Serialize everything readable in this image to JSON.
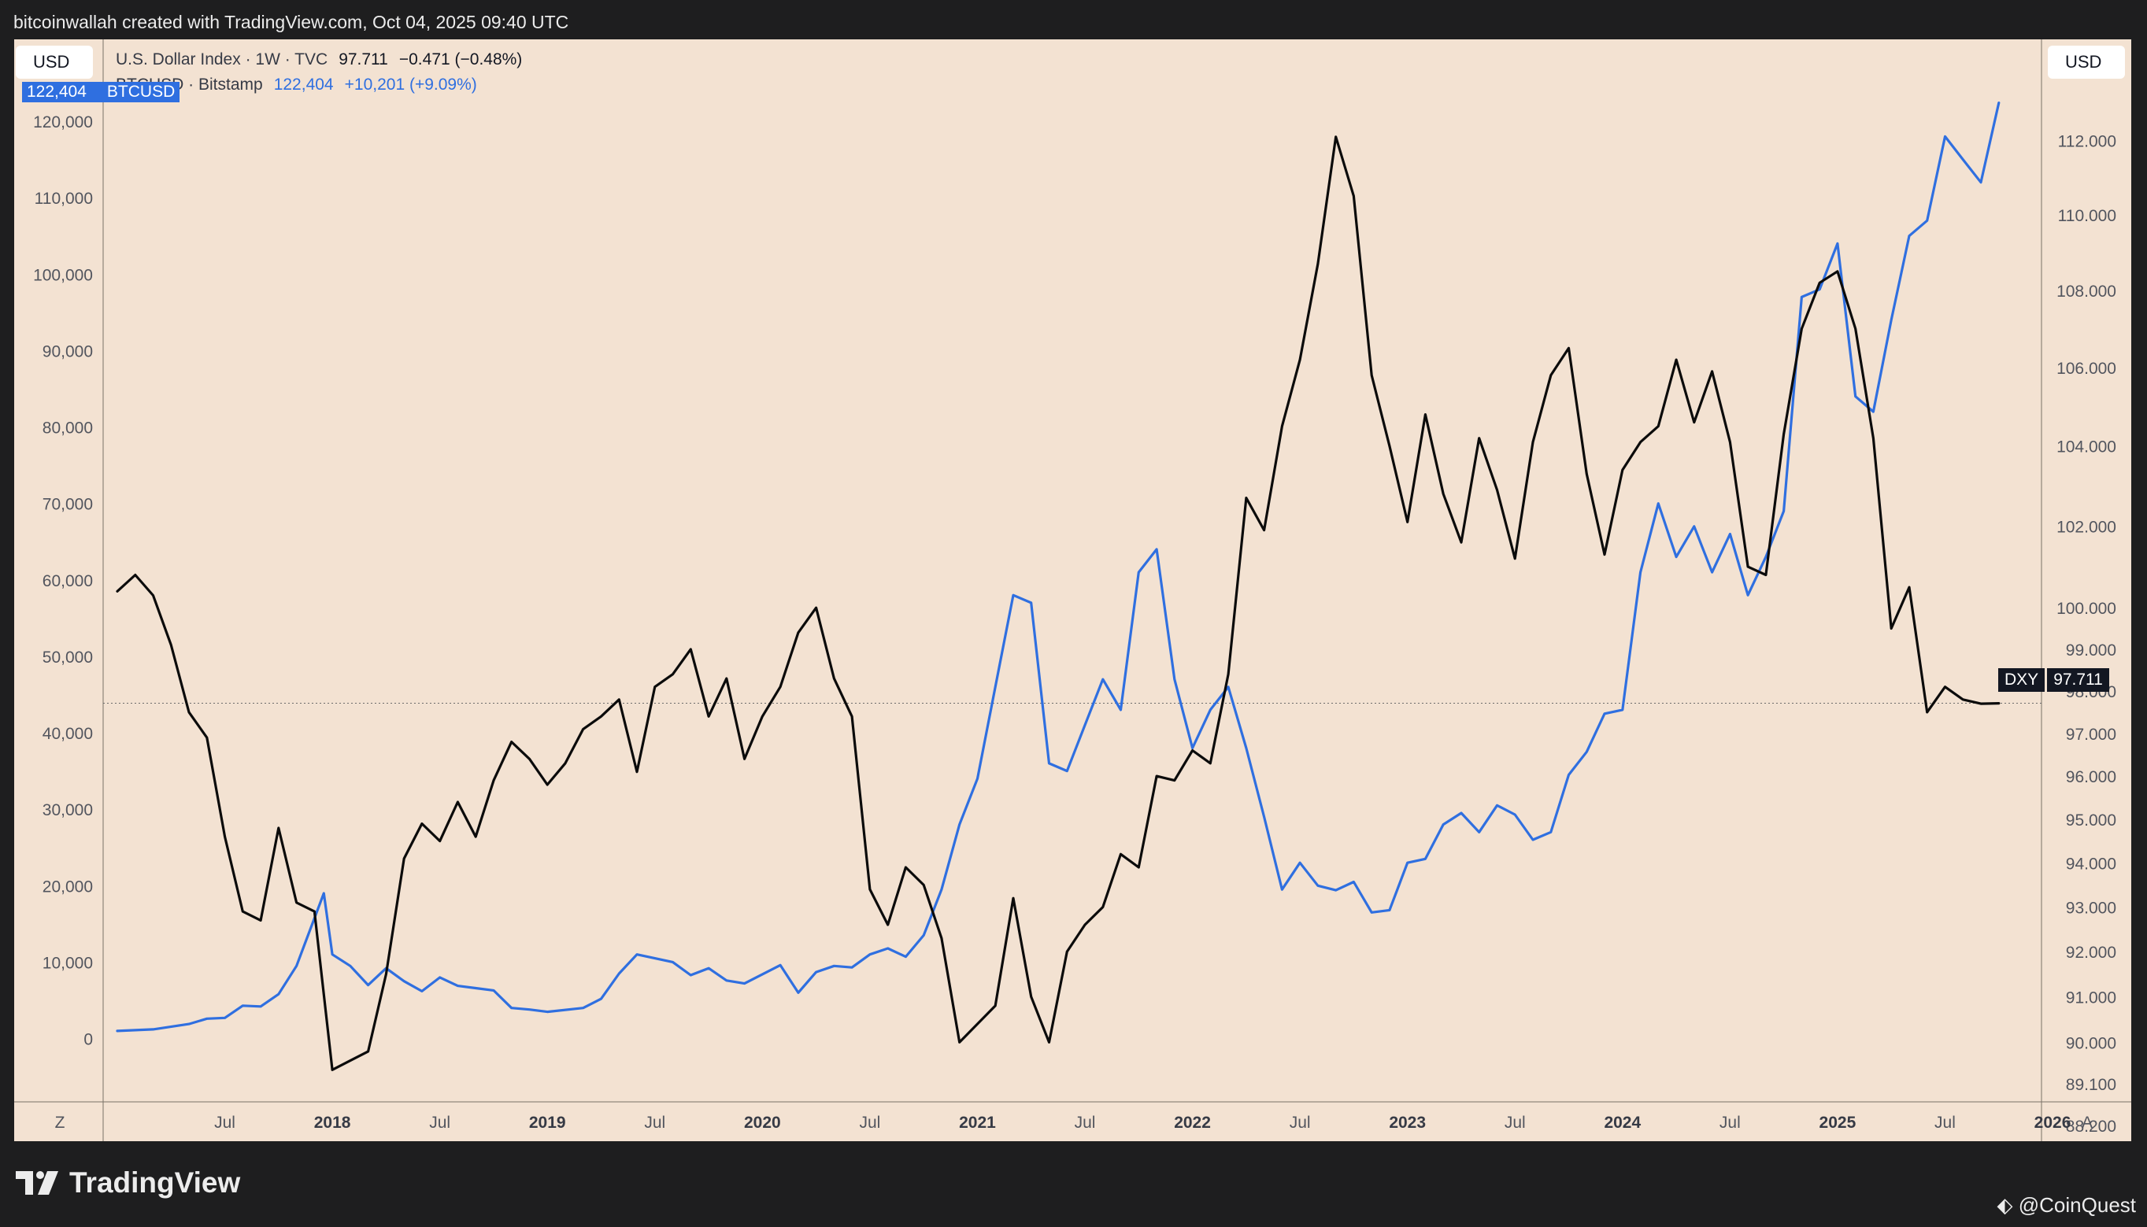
{
  "header": {
    "caption": "bitcoinwallah created with TradingView.com, Oct 04, 2025 09:40 UTC"
  },
  "toolbar": {
    "left_currency": "USD",
    "right_currency": "USD",
    "left_corner": "Z",
    "right_corner": "A"
  },
  "legend": {
    "dxy": {
      "title": "U.S. Dollar Index · 1W · TVC",
      "value": "97.711",
      "change": "−0.471 (−0.48%)"
    },
    "btc": {
      "title": "BTCUSD · Bitstamp",
      "value": "122,404",
      "change": "+10,201 (+9.09%)"
    }
  },
  "price_tags": {
    "btc": {
      "value": "122,404",
      "name": "BTCUSD"
    },
    "dxy": {
      "name": "DXY",
      "value": "97.711"
    }
  },
  "footer": {
    "brand": "TradingView",
    "watermark": "@CoinQuest"
  },
  "colors": {
    "background": "#f3e2d2",
    "btc_line": "#2f6fe0",
    "dxy_line": "#0b0b0b",
    "frame": "#1e1e1f"
  },
  "chart_data": {
    "type": "line",
    "x_tick_labels": [
      "Jul",
      "2018",
      "Jul",
      "2019",
      "Jul",
      "2020",
      "Jul",
      "2021",
      "Jul",
      "2022",
      "Jul",
      "2023",
      "Jul",
      "2024",
      "Jul",
      "2025",
      "Jul",
      "2026"
    ],
    "left_axis": {
      "series": "BTCUSD",
      "ylim": [
        -2000,
        127000
      ],
      "ticks": [
        "0",
        "10,000",
        "20,000",
        "30,000",
        "40,000",
        "50,000",
        "60,000",
        "70,000",
        "80,000",
        "90,000",
        "100,000",
        "110,000",
        "120,000"
      ],
      "tick_values": [
        0,
        10000,
        20000,
        30000,
        40000,
        50000,
        60000,
        70000,
        80000,
        90000,
        100000,
        110000,
        120000
      ]
    },
    "right_axis": {
      "series": "DXY",
      "scale": "log",
      "ylim": [
        88.0,
        113.3
      ],
      "ticks": [
        "88.200",
        "89.100",
        "90.000",
        "91.000",
        "92.000",
        "93.000",
        "94.000",
        "95.000",
        "96.000",
        "97.000",
        "98.000",
        "99.000",
        "100.000",
        "102.000",
        "104.000",
        "106.000",
        "108.000",
        "110.000",
        "112.000"
      ],
      "tick_values": [
        88.2,
        89.1,
        90.0,
        91.0,
        92.0,
        93.0,
        94.0,
        95.0,
        96.0,
        97.0,
        98.0,
        99.0,
        100.0,
        102.0,
        104.0,
        106.0,
        108.0,
        110.0,
        112.0
      ]
    },
    "series": [
      {
        "name": "BTCUSD",
        "axis": "left",
        "color": "#2f6fe0",
        "x": [
          "2017-01",
          "2017-03",
          "2017-05",
          "2017-06",
          "2017-07",
          "2017-08",
          "2017-09",
          "2017-10",
          "2017-11",
          "2017-12-17",
          "2018-01",
          "2018-02",
          "2018-03",
          "2018-04",
          "2018-05",
          "2018-06",
          "2018-07",
          "2018-08",
          "2018-09",
          "2018-10",
          "2018-11",
          "2018-12",
          "2019-01",
          "2019-03",
          "2019-04",
          "2019-05",
          "2019-06",
          "2019-07",
          "2019-08",
          "2019-09",
          "2019-10",
          "2019-11",
          "2019-12",
          "2020-02",
          "2020-03",
          "2020-04",
          "2020-05",
          "2020-06",
          "2020-07",
          "2020-08",
          "2020-09",
          "2020-10",
          "2020-11",
          "2020-12",
          "2021-01",
          "2021-02",
          "2021-03",
          "2021-04",
          "2021-05",
          "2021-06",
          "2021-07",
          "2021-08",
          "2021-09",
          "2021-10",
          "2021-11",
          "2021-12",
          "2022-01",
          "2022-02",
          "2022-03",
          "2022-04",
          "2022-05",
          "2022-06",
          "2022-07",
          "2022-08",
          "2022-09",
          "2022-10",
          "2022-11",
          "2022-12",
          "2023-01",
          "2023-02",
          "2023-03",
          "2023-04",
          "2023-05",
          "2023-06",
          "2023-07",
          "2023-08",
          "2023-09",
          "2023-10",
          "2023-11",
          "2023-12",
          "2024-01",
          "2024-02",
          "2024-03",
          "2024-04",
          "2024-05",
          "2024-06",
          "2024-07",
          "2024-08",
          "2024-09",
          "2024-10",
          "2024-11",
          "2024-12",
          "2025-01",
          "2025-02",
          "2025-03",
          "2025-04",
          "2025-05",
          "2025-06",
          "2025-07",
          "2025-08",
          "2025-09",
          "2025-10"
        ],
        "values": [
          1000,
          1200,
          1900,
          2600,
          2700,
          4300,
          4200,
          5800,
          9500,
          19000,
          11000,
          9500,
          7000,
          9200,
          7500,
          6200,
          8000,
          6900,
          6600,
          6300,
          4000,
          3800,
          3500,
          4000,
          5200,
          8500,
          11000,
          10500,
          10000,
          8300,
          9200,
          7600,
          7200,
          9600,
          6000,
          8700,
          9500,
          9300,
          11000,
          11800,
          10700,
          13500,
          19500,
          28000,
          34000,
          46000,
          58000,
          57000,
          36000,
          35000,
          41000,
          47000,
          43000,
          61000,
          64000,
          47000,
          38000,
          43000,
          46000,
          38000,
          29000,
          19500,
          23000,
          20000,
          19400,
          20500,
          16500,
          16800,
          23000,
          23500,
          28000,
          29500,
          27000,
          30500,
          29300,
          26000,
          27000,
          34500,
          37500,
          42500,
          43000,
          61000,
          70000,
          63000,
          67000,
          61000,
          66000,
          58000,
          63000,
          69000,
          97000,
          98000,
          104000,
          84000,
          82000,
          94000,
          105000,
          107000,
          118000,
          115000,
          112000,
          122404
        ]
      },
      {
        "name": "DXY",
        "axis": "right",
        "color": "#0b0b0b",
        "x": [
          "2017-01",
          "2017-02",
          "2017-03",
          "2017-04",
          "2017-05",
          "2017-06",
          "2017-07",
          "2017-08",
          "2017-09",
          "2017-10",
          "2017-11",
          "2017-12",
          "2018-01",
          "2018-02",
          "2018-03",
          "2018-04",
          "2018-05",
          "2018-06",
          "2018-07",
          "2018-08",
          "2018-09",
          "2018-10",
          "2018-11",
          "2018-12",
          "2019-01",
          "2019-02",
          "2019-03",
          "2019-04",
          "2019-05",
          "2019-06",
          "2019-07",
          "2019-08",
          "2019-09",
          "2019-10",
          "2019-11",
          "2019-12",
          "2020-01",
          "2020-02",
          "2020-03",
          "2020-04",
          "2020-05",
          "2020-06",
          "2020-07",
          "2020-08",
          "2020-09",
          "2020-10",
          "2020-11",
          "2020-12",
          "2021-01",
          "2021-02",
          "2021-03",
          "2021-04",
          "2021-05",
          "2021-06",
          "2021-07",
          "2021-08",
          "2021-09",
          "2021-10",
          "2021-11",
          "2021-12",
          "2022-01",
          "2022-02",
          "2022-03",
          "2022-04",
          "2022-05",
          "2022-06",
          "2022-07",
          "2022-08",
          "2022-09",
          "2022-10",
          "2022-11",
          "2022-12",
          "2023-01",
          "2023-02",
          "2023-03",
          "2023-04",
          "2023-05",
          "2023-06",
          "2023-07",
          "2023-08",
          "2023-09",
          "2023-10",
          "2023-11",
          "2023-12",
          "2024-01",
          "2024-02",
          "2024-03",
          "2024-04",
          "2024-05",
          "2024-06",
          "2024-07",
          "2024-08",
          "2024-09",
          "2024-10",
          "2024-11",
          "2024-12",
          "2025-01",
          "2025-02",
          "2025-03",
          "2025-04",
          "2025-05",
          "2025-06",
          "2025-07",
          "2025-08",
          "2025-09",
          "2025-10"
        ],
        "values": [
          100.4,
          100.8,
          100.3,
          99.1,
          97.5,
          96.9,
          94.6,
          92.9,
          92.7,
          94.8,
          93.1,
          92.9,
          89.4,
          89.6,
          89.8,
          91.5,
          94.1,
          94.9,
          94.5,
          95.4,
          94.6,
          95.9,
          96.8,
          96.4,
          95.8,
          96.3,
          97.1,
          97.4,
          97.8,
          96.1,
          98.1,
          98.4,
          99.0,
          97.4,
          98.3,
          96.4,
          97.4,
          98.1,
          99.4,
          100.0,
          98.3,
          97.4,
          93.4,
          92.6,
          93.9,
          93.5,
          92.3,
          90.0,
          90.4,
          90.8,
          93.2,
          91.0,
          90.0,
          92.0,
          92.6,
          93.0,
          94.2,
          93.9,
          96.0,
          95.9,
          96.6,
          96.3,
          98.4,
          102.7,
          101.9,
          104.5,
          106.2,
          108.7,
          112.1,
          110.5,
          105.8,
          104.0,
          102.1,
          104.8,
          102.8,
          101.6,
          104.2,
          102.9,
          101.2,
          104.1,
          105.8,
          106.5,
          103.3,
          101.3,
          103.4,
          104.1,
          104.5,
          106.2,
          104.6,
          105.9,
          104.1,
          101.0,
          100.8,
          104.3,
          107.0,
          108.2,
          108.5,
          107.0,
          104.2,
          99.5,
          100.5,
          97.5,
          98.1,
          97.8,
          97.7,
          97.711
        ]
      }
    ]
  }
}
